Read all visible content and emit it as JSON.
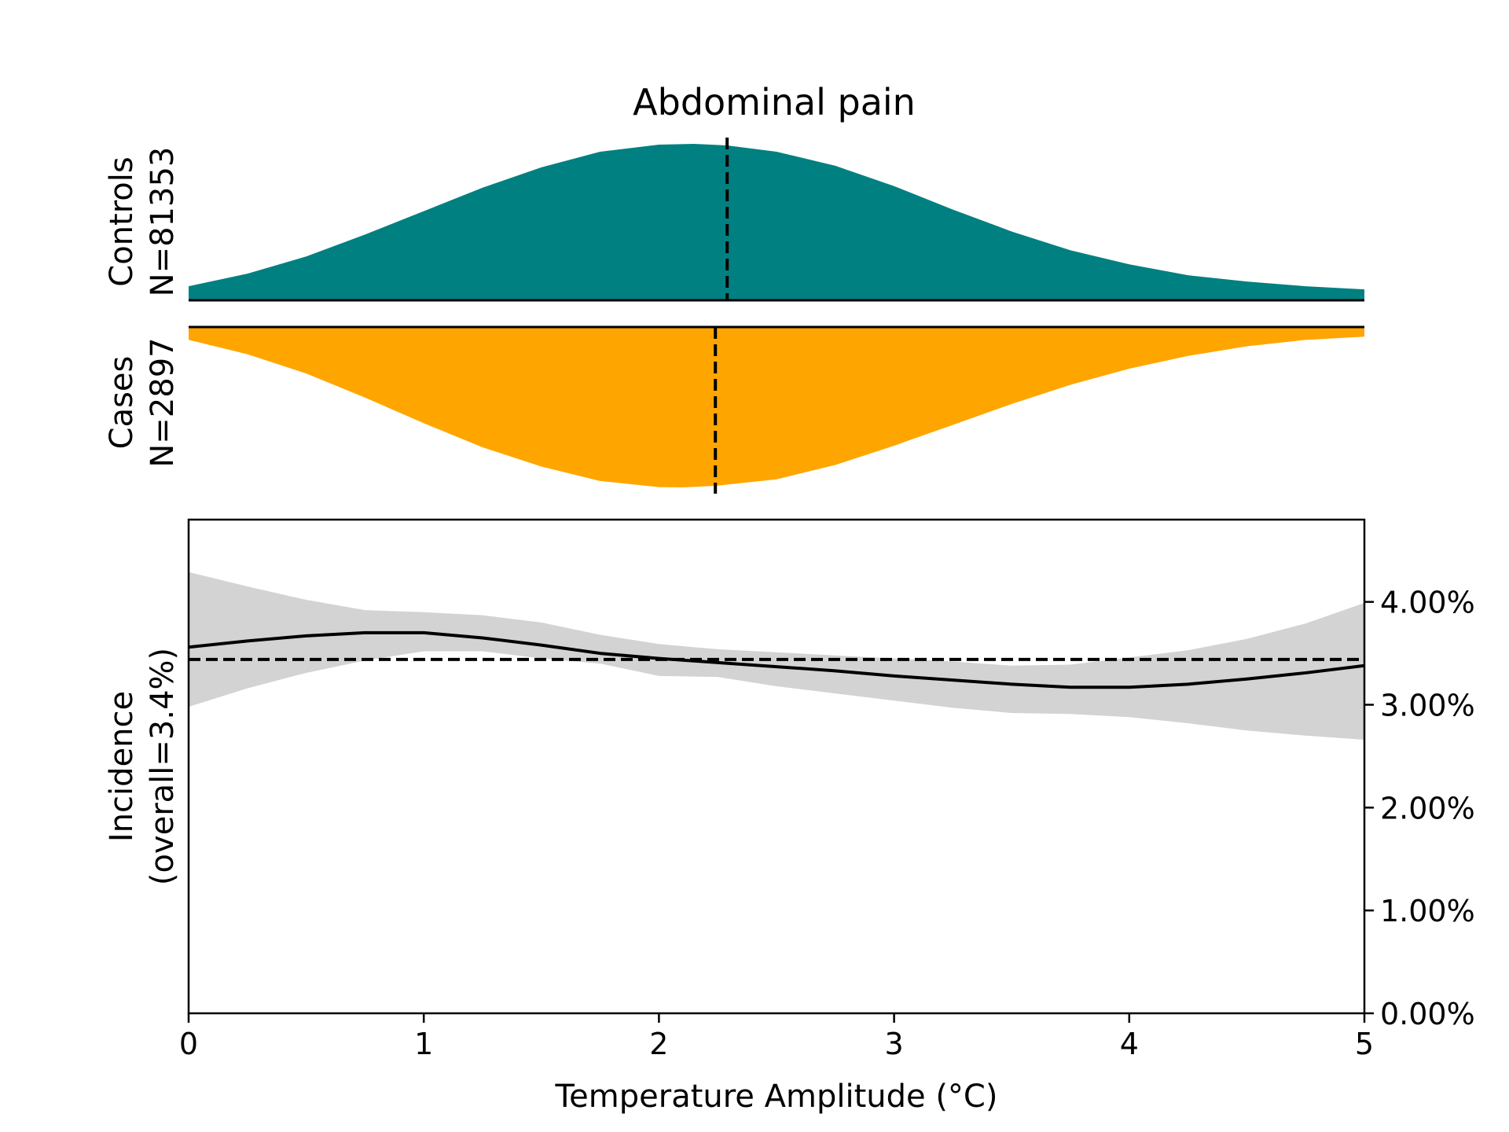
{
  "chart_data": {
    "type": "area",
    "title": "Abdominal pain",
    "xlabel": "Temperature Amplitude (°C)",
    "xlim": [
      0,
      5
    ],
    "xticks": [
      0,
      1,
      2,
      3,
      4,
      5
    ],
    "xtick_labels": [
      "0",
      "1",
      "2",
      "3",
      "4",
      "5"
    ],
    "grid": false,
    "panels": {
      "controls": {
        "label_line1": "Controls",
        "label_line2": "N=81353",
        "color": "#008080",
        "median_x": 2.29,
        "density": {
          "x": [
            0,
            0.25,
            0.5,
            0.75,
            1.0,
            1.25,
            1.5,
            1.75,
            2.0,
            2.15,
            2.29,
            2.5,
            2.75,
            3.0,
            3.25,
            3.5,
            3.75,
            4.0,
            4.25,
            4.5,
            4.75,
            5.0
          ],
          "y": [
            0.09,
            0.17,
            0.28,
            0.42,
            0.57,
            0.72,
            0.85,
            0.95,
            0.995,
            1.0,
            0.99,
            0.95,
            0.86,
            0.73,
            0.58,
            0.44,
            0.32,
            0.23,
            0.16,
            0.12,
            0.09,
            0.07
          ]
        }
      },
      "cases": {
        "label_line1": "Cases",
        "label_line2": "N=2897",
        "color": "#ffa500",
        "median_x": 2.24,
        "density": {
          "x": [
            0,
            0.25,
            0.5,
            0.75,
            1.0,
            1.25,
            1.5,
            1.75,
            2.0,
            2.1,
            2.24,
            2.5,
            2.75,
            3.0,
            3.25,
            3.5,
            3.75,
            4.0,
            4.25,
            4.5,
            4.75,
            5.0
          ],
          "y": [
            0.08,
            0.17,
            0.29,
            0.44,
            0.6,
            0.75,
            0.87,
            0.96,
            0.998,
            1.0,
            0.99,
            0.95,
            0.86,
            0.74,
            0.61,
            0.48,
            0.36,
            0.26,
            0.18,
            0.12,
            0.08,
            0.06
          ]
        }
      }
    },
    "incidence": {
      "ylabel_line1": "Incidence",
      "ylabel_line2": "(overall=3.4%)",
      "ylim": [
        0,
        0.048
      ],
      "yticks": [
        0,
        0.01,
        0.02,
        0.03,
        0.04
      ],
      "ytick_labels": [
        "0.00%",
        "1.00%",
        "2.00%",
        "3.00%",
        "4.00%"
      ],
      "yaxis_position": "right",
      "overall": 0.0344,
      "series": [
        {
          "x": [
            0,
            0.25,
            0.5,
            0.75,
            1.0,
            1.25,
            1.5,
            1.75,
            2.0,
            2.25,
            2.5,
            2.75,
            3.0,
            3.25,
            3.5,
            3.75,
            4.0,
            4.25,
            4.5,
            4.75,
            5.0
          ],
          "y": [
            0.0356,
            0.0362,
            0.0367,
            0.037,
            0.037,
            0.0365,
            0.0358,
            0.035,
            0.0345,
            0.0341,
            0.0337,
            0.0333,
            0.0328,
            0.0324,
            0.032,
            0.0317,
            0.0317,
            0.032,
            0.0325,
            0.0331,
            0.0338
          ],
          "ci_low": [
            0.0298,
            0.0316,
            0.0331,
            0.0343,
            0.0352,
            0.0352,
            0.0345,
            0.034,
            0.0328,
            0.0327,
            0.0318,
            0.0311,
            0.0304,
            0.0297,
            0.0292,
            0.0291,
            0.0288,
            0.0282,
            0.0275,
            0.027,
            0.0266
          ],
          "ci_high": [
            0.0429,
            0.0415,
            0.0402,
            0.0392,
            0.039,
            0.0387,
            0.038,
            0.0368,
            0.0359,
            0.0354,
            0.0351,
            0.0348,
            0.0345,
            0.0342,
            0.0338,
            0.0339,
            0.0346,
            0.0353,
            0.0364,
            0.0379,
            0.0399
          ],
          "line_color": "#000000",
          "band_color": "#d3d3d3"
        }
      ]
    }
  }
}
